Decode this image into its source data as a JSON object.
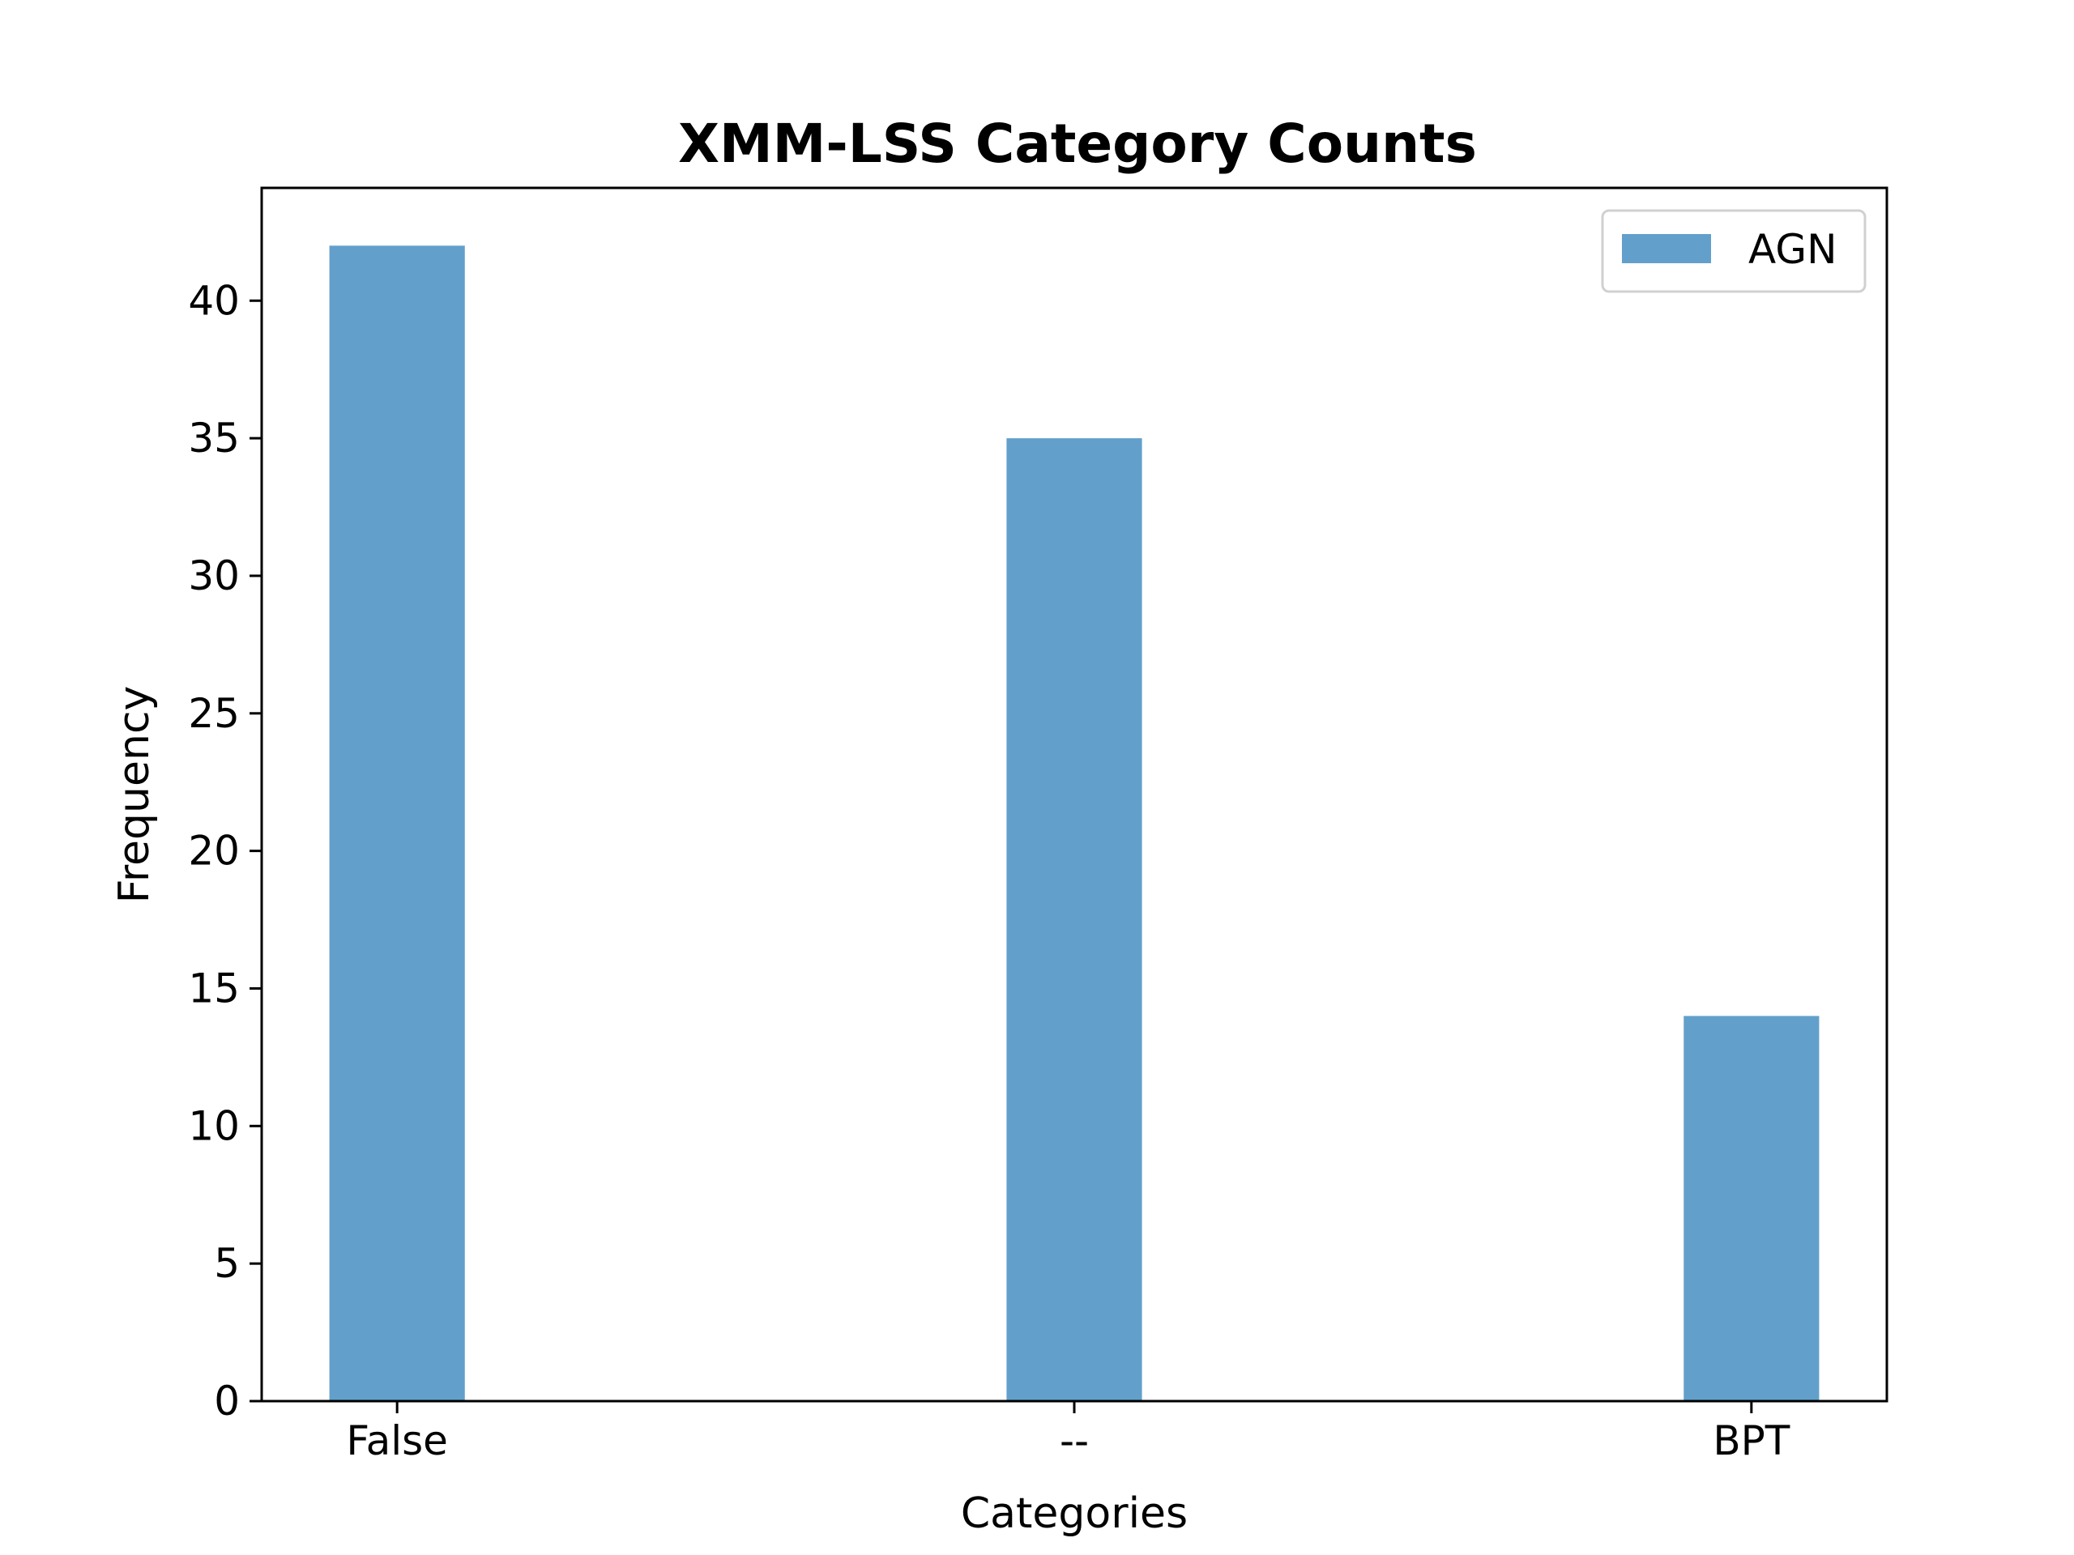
{
  "chart_data": {
    "type": "bar",
    "title": "XMM-LSS Category Counts",
    "xlabel": "Categories",
    "ylabel": "Frequency",
    "categories": [
      "False",
      "--",
      "BPT"
    ],
    "series": [
      {
        "name": "AGN",
        "values": [
          42,
          35,
          14
        ],
        "color": "#62a0cb"
      }
    ],
    "ylim": [
      0,
      44.1
    ],
    "yticks": [
      0,
      5,
      10,
      15,
      20,
      25,
      30,
      35,
      40
    ],
    "legend": "top-right",
    "grid": false
  }
}
